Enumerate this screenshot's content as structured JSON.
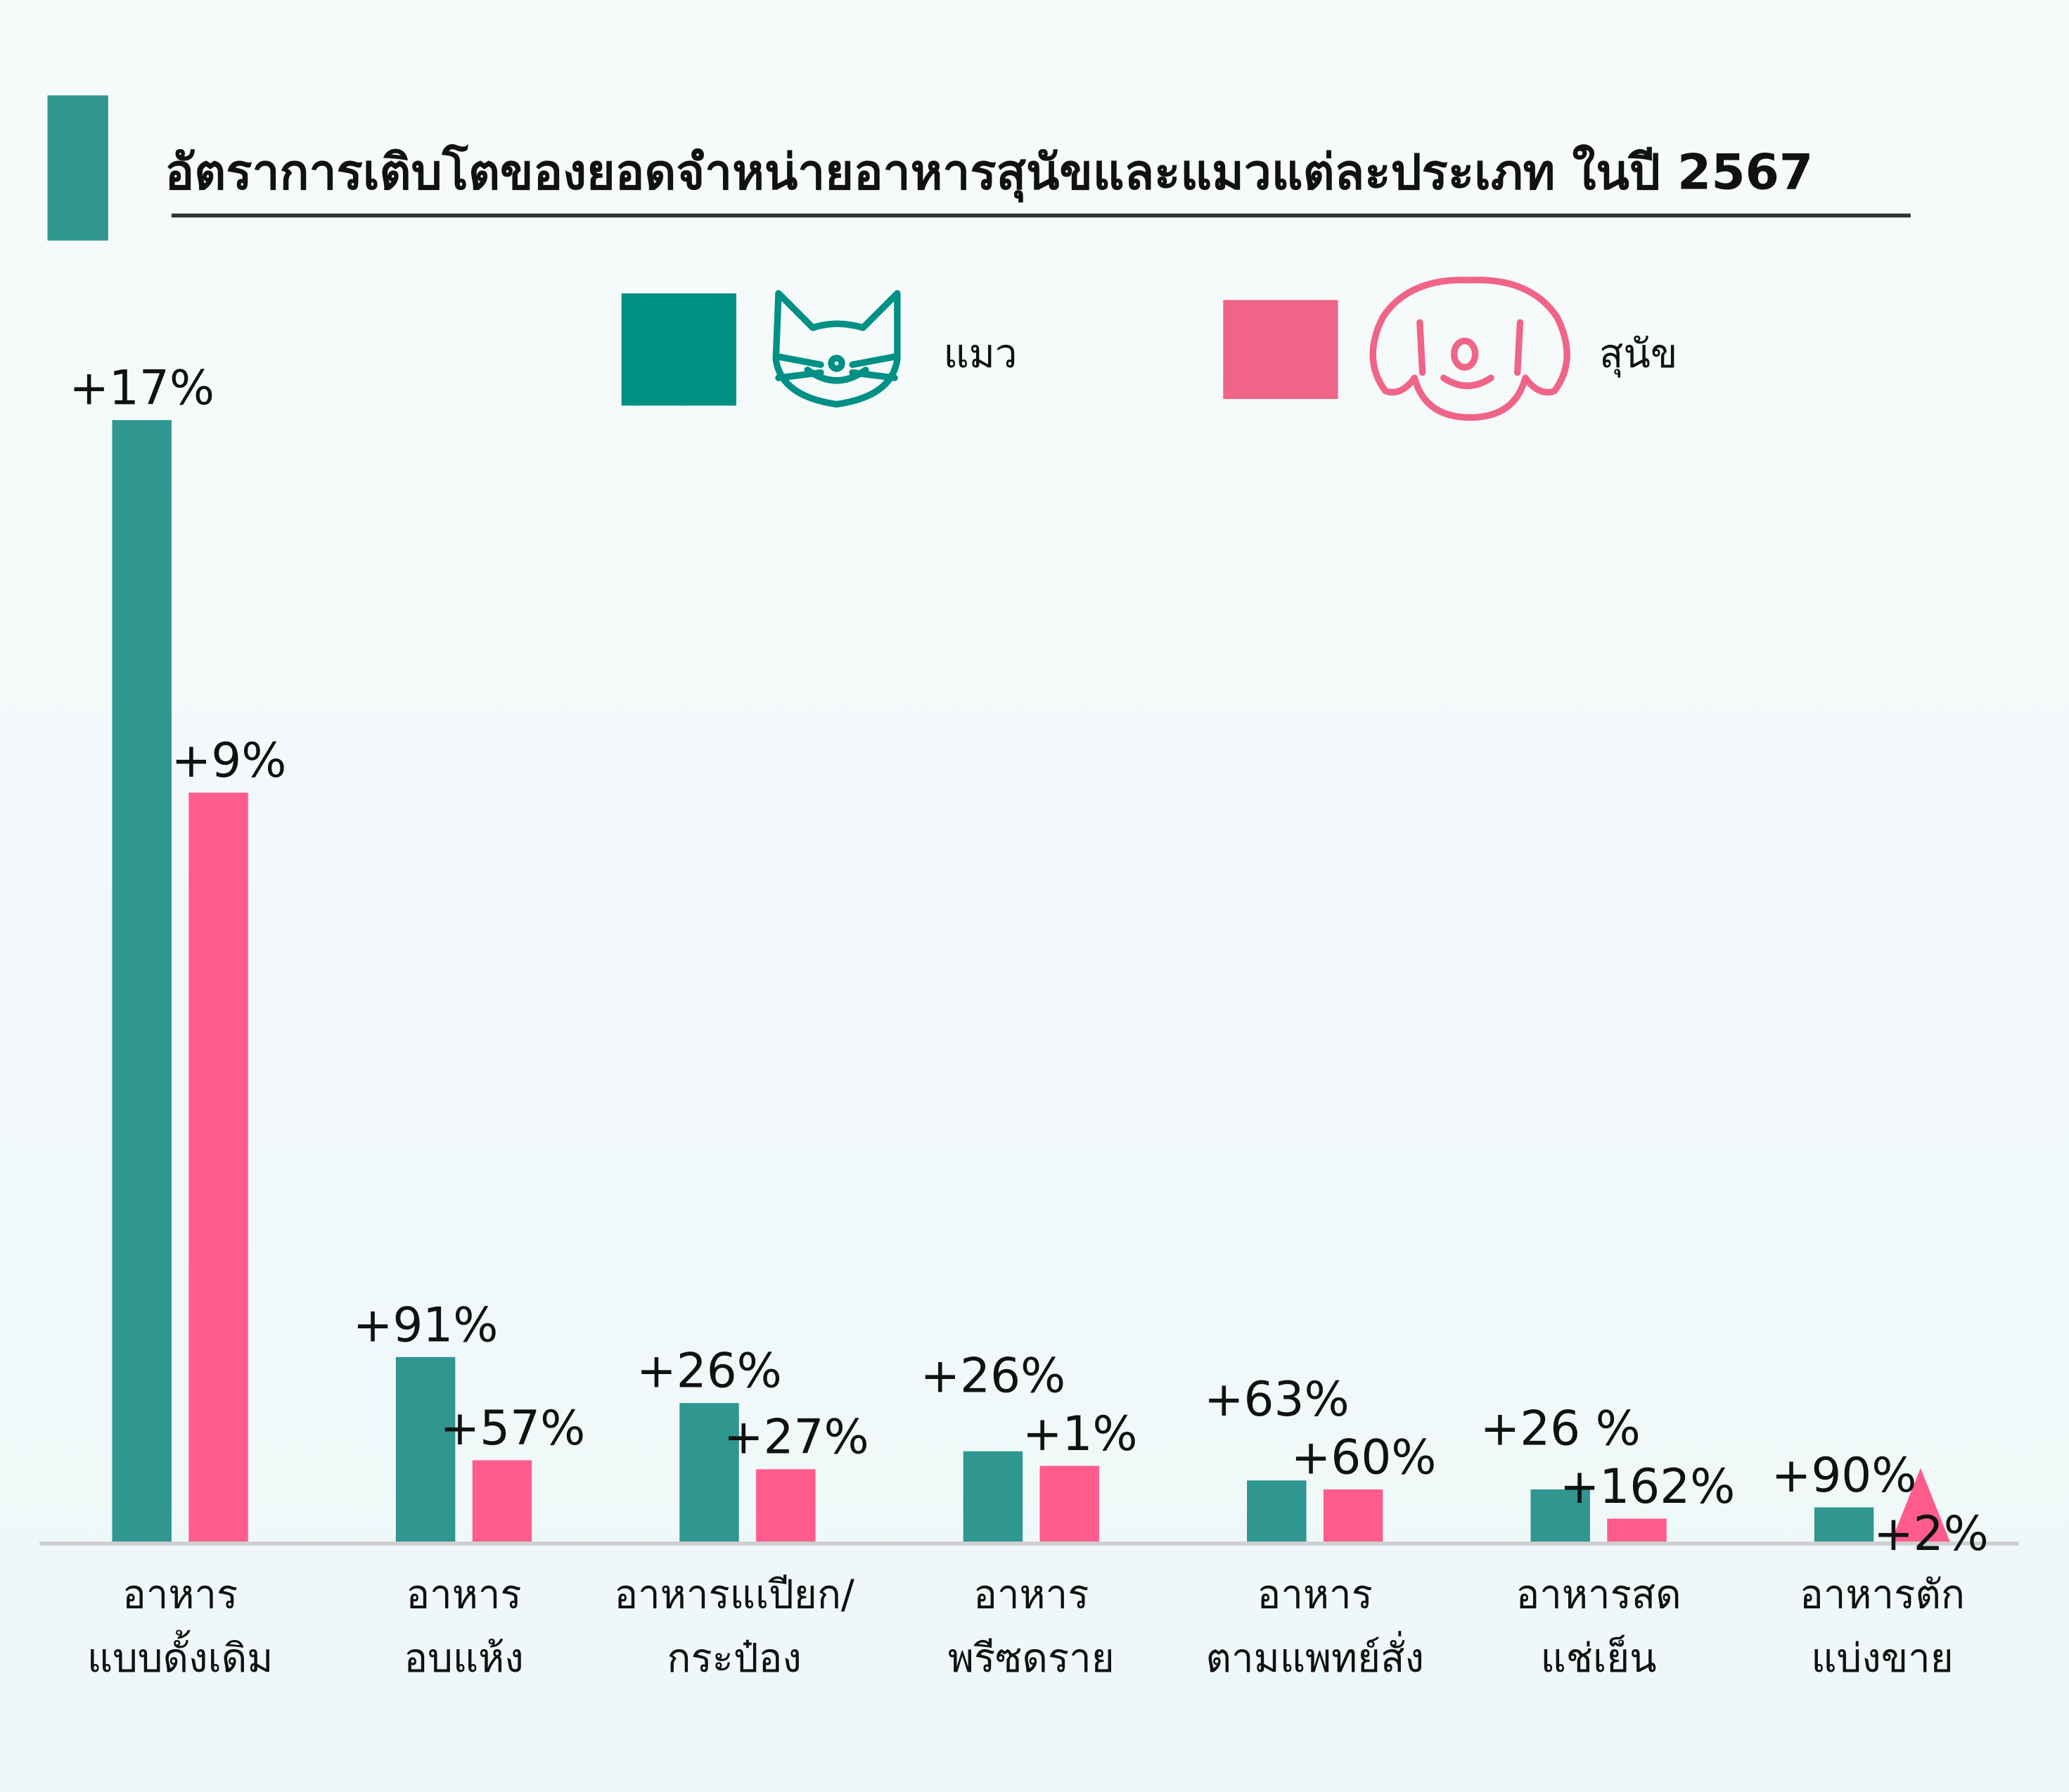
{
  "chart_data": {
    "type": "bar",
    "title": "อัตราการเติบโตของยอดจำหน่ายอาหารสุนัขและแมวแต่ละประเภท ในปี 2567",
    "xlabel": "",
    "ylabel": "",
    "grid": false,
    "legend_placement": "top-center",
    "categories": [
      [
        "อาหาร",
        "แบบดั้งเดิม"
      ],
      [
        "อาหาร",
        "อบแห้ง"
      ],
      [
        "อาหารแเปียก/",
        "กระป๋อง"
      ],
      [
        "อาหาร",
        "พรีซดราย"
      ],
      [
        "อาหาร",
        "ตามแพทย์สั่ง"
      ],
      [
        "อาหารสด",
        "แช่เย็น"
      ],
      [
        "อาหารตัก",
        "แบ่งขาย"
      ]
    ],
    "series": [
      {
        "name": "แมว",
        "icon": "cat-icon",
        "color": "#2f9690",
        "legend_color": "#009085",
        "labels": [
          "+17%",
          "+91%",
          "+26%",
          "+26%",
          "+63%",
          "+26 %",
          "+90%"
        ],
        "relative_bar_length": [
          100,
          16.5,
          12.4,
          8.1,
          5.5,
          4.7,
          3.1
        ],
        "mark": [
          "bar",
          "bar",
          "bar",
          "bar",
          "bar",
          "bar",
          "bar"
        ]
      },
      {
        "name": "สุนัข",
        "icon": "dog-icon",
        "color": "#ff5c8d",
        "legend_color": "#f06488",
        "labels": [
          "+9%",
          "+57%",
          "+27%",
          "+1%",
          "+60%",
          "+162%",
          "+2%"
        ],
        "relative_bar_length": [
          66.8,
          7.3,
          6.5,
          6.8,
          4.7,
          2.1,
          6.6
        ],
        "mark": [
          "bar",
          "bar",
          "bar",
          "bar",
          "bar",
          "bar",
          "triangle"
        ]
      }
    ],
    "ylim": [
      0,
      100
    ]
  }
}
